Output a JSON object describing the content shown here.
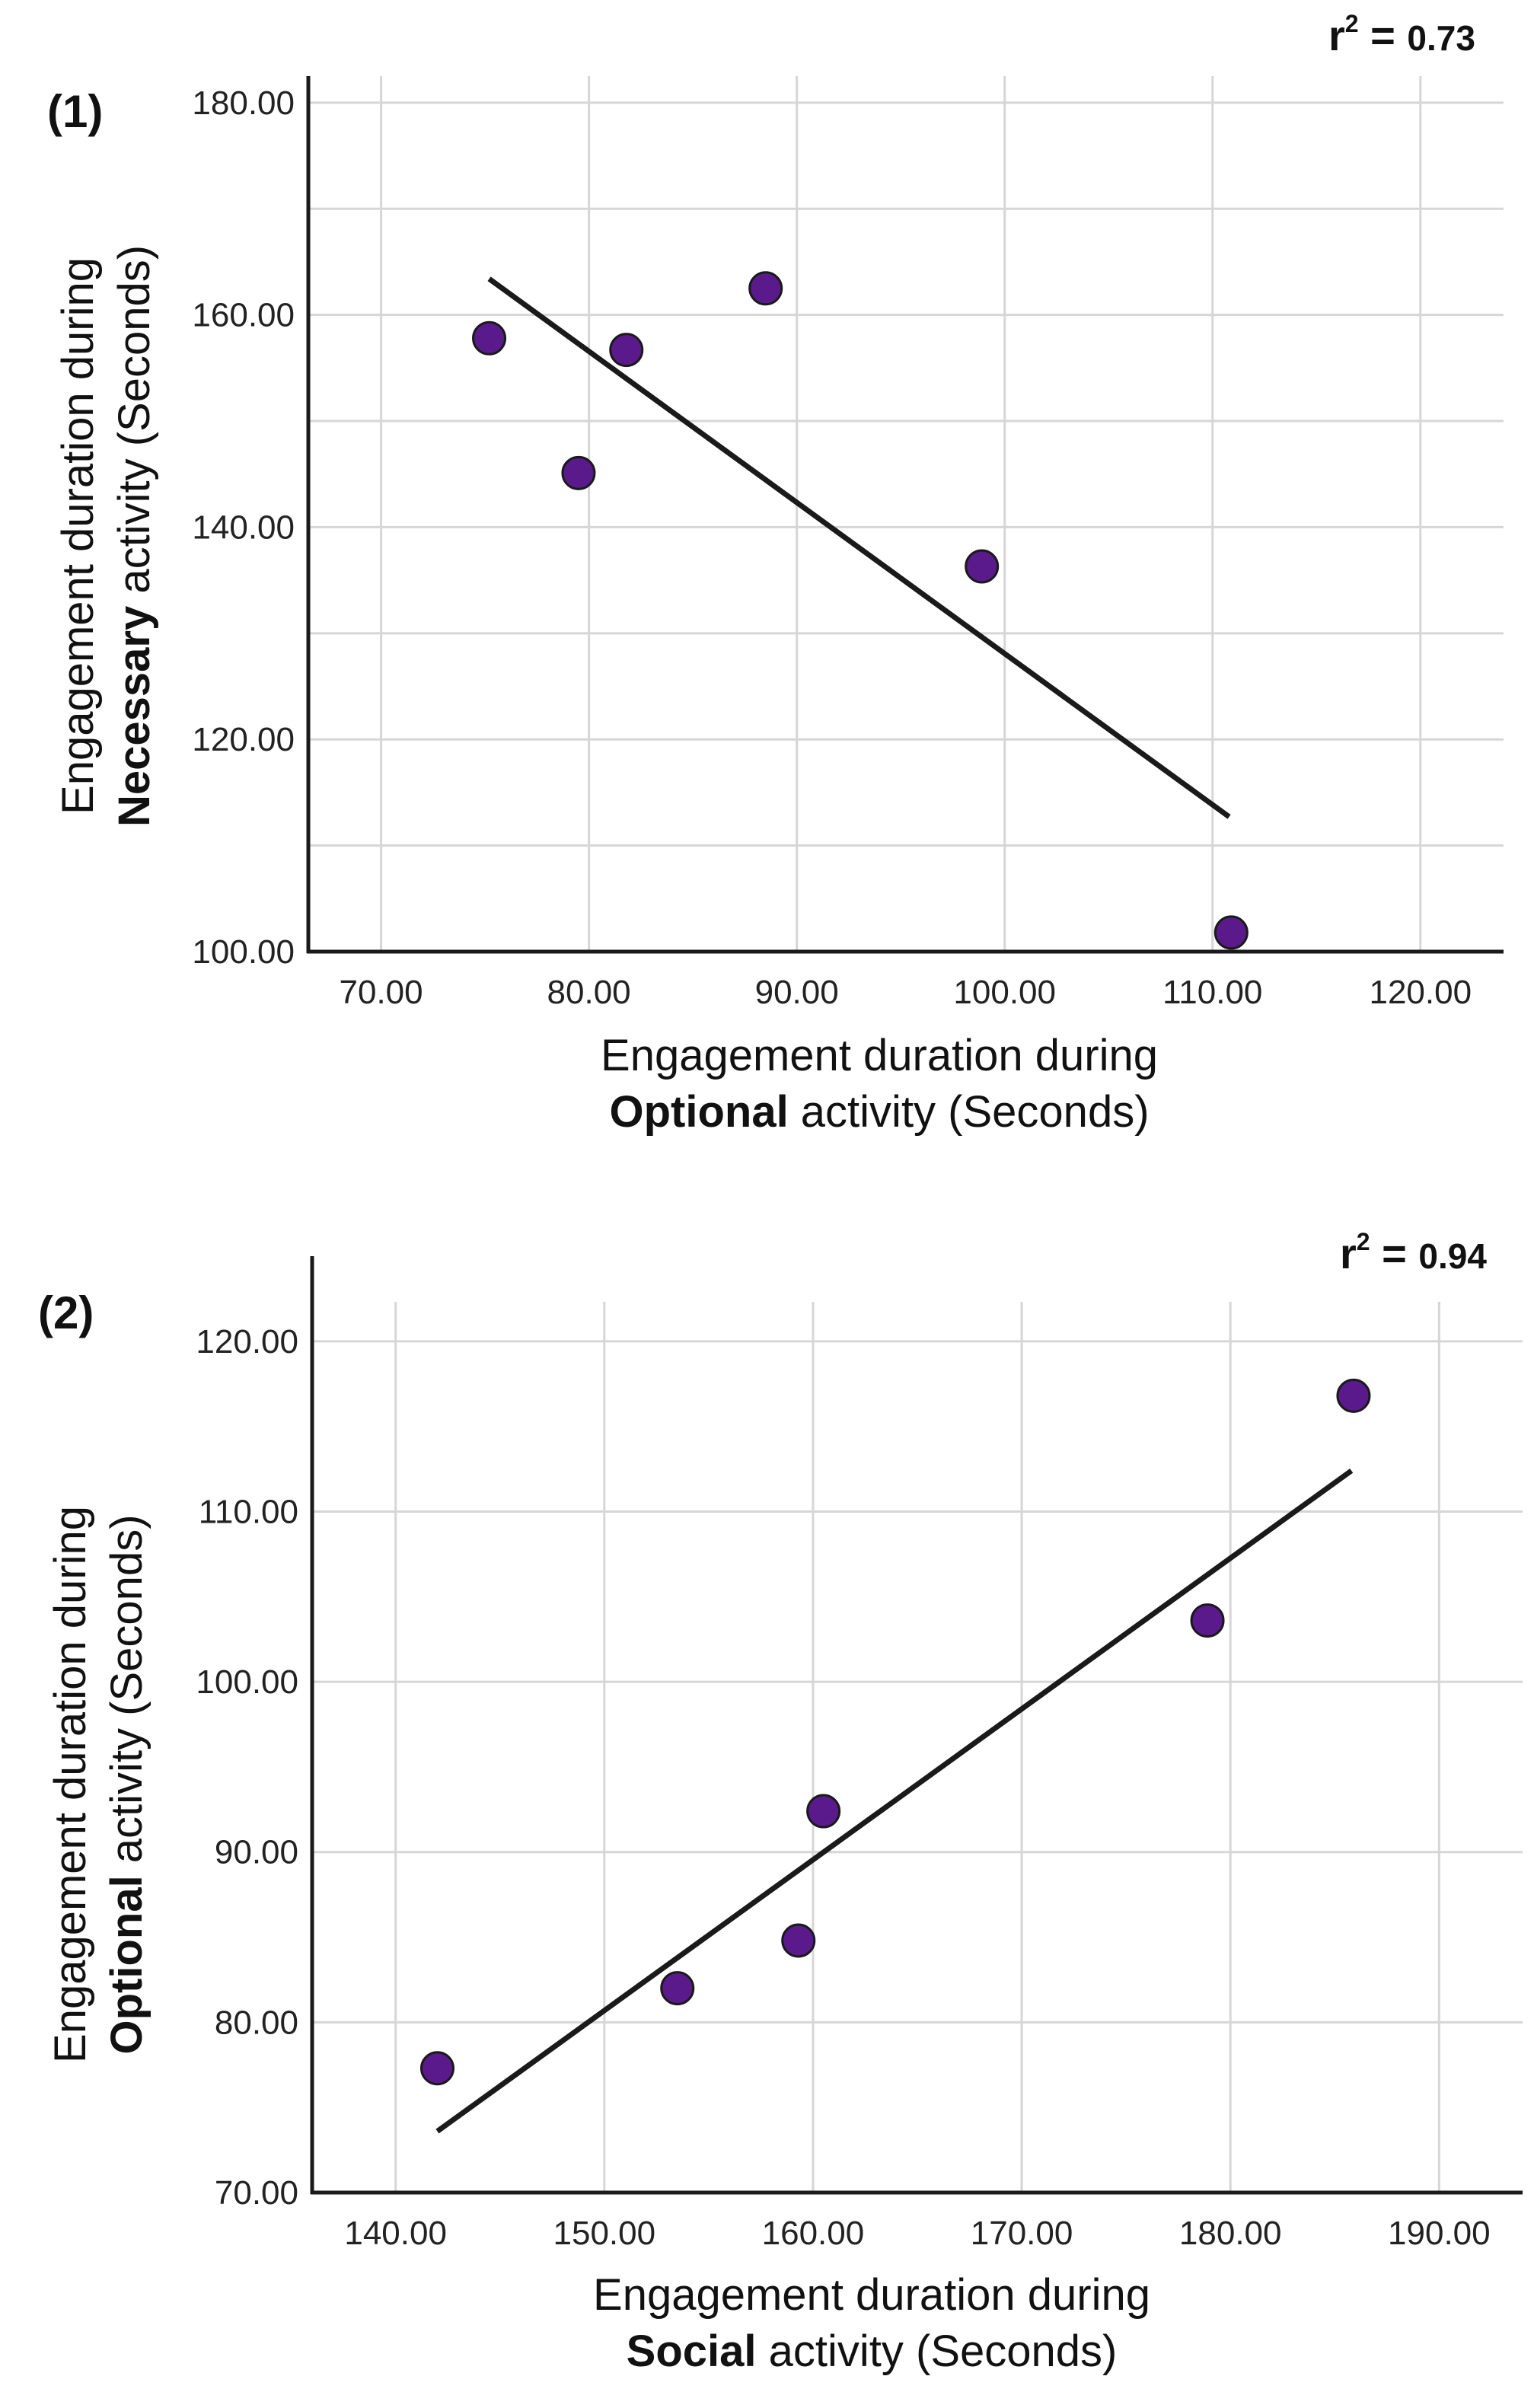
{
  "chart_data": [
    {
      "type": "scatter",
      "panel_label": "(1)",
      "r2_prefix": "r",
      "r2_sup": "2",
      "r2_eq": " = ",
      "r2_value": "0.73",
      "xlabel_line1": "Engagement duration during",
      "xlabel_bold": "Optional",
      "xlabel_rest": " activity (Seconds)",
      "ylabel_line1": "Engagement duration during",
      "ylabel_bold": "Necessary",
      "ylabel_rest": " activity (Seconds)",
      "xlim": [
        66.5,
        124
      ],
      "ylim": [
        100,
        182.5
      ],
      "xticks": [
        70,
        80,
        90,
        100,
        110,
        120
      ],
      "yticks": [
        100,
        120,
        140,
        160,
        180
      ],
      "xtick_labels": [
        "70.00",
        "80.00",
        "90.00",
        "100.00",
        "110.00",
        "120.00"
      ],
      "ytick_labels": [
        "100.00",
        "120.00",
        "140.00",
        "160.00",
        "180.00"
      ],
      "vgrid": [
        70,
        80,
        90,
        100,
        110,
        120
      ],
      "hgrid": [
        110,
        120,
        130,
        140,
        150,
        160,
        170,
        180
      ],
      "points": [
        {
          "x": 75.2,
          "y": 157.8
        },
        {
          "x": 79.5,
          "y": 145.1
        },
        {
          "x": 81.8,
          "y": 156.7
        },
        {
          "x": 88.5,
          "y": 162.5
        },
        {
          "x": 98.9,
          "y": 136.3
        },
        {
          "x": 110.9,
          "y": 101.8
        }
      ],
      "fit_line": {
        "x1": 75.2,
        "y1": 163.4,
        "x2": 110.8,
        "y2": 112.7
      }
    },
    {
      "type": "scatter",
      "panel_label": "(2)",
      "r2_prefix": "r",
      "r2_sup": "2",
      "r2_eq": " = ",
      "r2_value": "0.94",
      "xlabel_line1": "Engagement duration during",
      "xlabel_bold": "Social",
      "xlabel_rest": " activity (Seconds)",
      "ylabel_line1": "Engagement duration during",
      "ylabel_bold": "Optional",
      "ylabel_rest": " activity (Seconds)",
      "xlim": [
        136,
        194
      ],
      "ylim": [
        70,
        125
      ],
      "xticks": [
        140,
        150,
        160,
        170,
        180,
        190
      ],
      "yticks": [
        70,
        80,
        90,
        100,
        110,
        120
      ],
      "xtick_labels": [
        "140.00",
        "150.00",
        "160.00",
        "170.00",
        "180.00",
        "190.00"
      ],
      "ytick_labels": [
        "70.00",
        "80.00",
        "90.00",
        "100.00",
        "110.00",
        "120.00"
      ],
      "vgrid": [
        140,
        150,
        160,
        170,
        180,
        190
      ],
      "hgrid": [
        80,
        90,
        100,
        110,
        120
      ],
      "points": [
        {
          "x": 142.0,
          "y": 77.3
        },
        {
          "x": 153.5,
          "y": 82.0
        },
        {
          "x": 159.3,
          "y": 84.8
        },
        {
          "x": 160.5,
          "y": 92.4
        },
        {
          "x": 178.9,
          "y": 103.6
        },
        {
          "x": 185.9,
          "y": 116.8
        }
      ],
      "fit_line": {
        "x1": 142.0,
        "y1": 73.6,
        "x2": 185.8,
        "y2": 112.4
      }
    }
  ]
}
